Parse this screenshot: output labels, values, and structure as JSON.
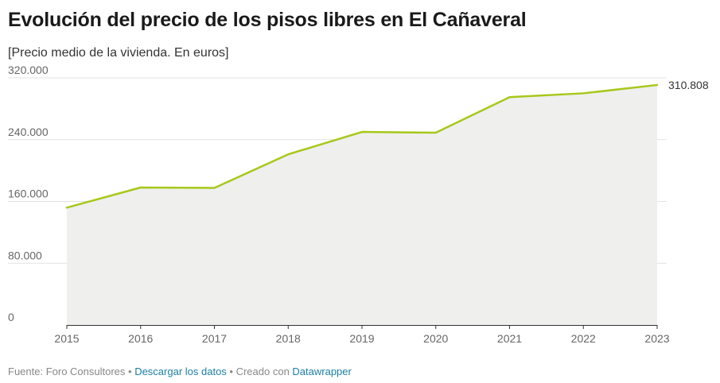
{
  "title": "Evolución del precio de los pisos libres en El Cañaveral",
  "subtitle": "[Precio medio de la vivienda. En euros]",
  "footer": {
    "source": "Fuente: Foro Consultores",
    "sep1": " • ",
    "download": "Descargar los datos",
    "sep2": " • Creado con ",
    "tool": "Datawrapper"
  },
  "colors": {
    "line": "#a7c81a",
    "area": "#efefee",
    "grid": "#e2e2e2",
    "axis": "#333333",
    "link": "#1d81a2"
  },
  "chart_data": {
    "type": "area",
    "x": [
      "2015",
      "2016",
      "2017",
      "2018",
      "2019",
      "2020",
      "2021",
      "2022",
      "2023"
    ],
    "series": [
      {
        "values": [
          152000,
          178000,
          177500,
          221000,
          250000,
          249000,
          295000,
          300000,
          310808
        ]
      }
    ],
    "ylim": [
      0,
      320000
    ],
    "yticks": [
      0,
      80000,
      160000,
      240000,
      320000
    ],
    "ytick_labels": [
      "0",
      "80.000",
      "160.000",
      "240.000",
      "320.000"
    ],
    "end_label": "310.808",
    "grid": true
  }
}
